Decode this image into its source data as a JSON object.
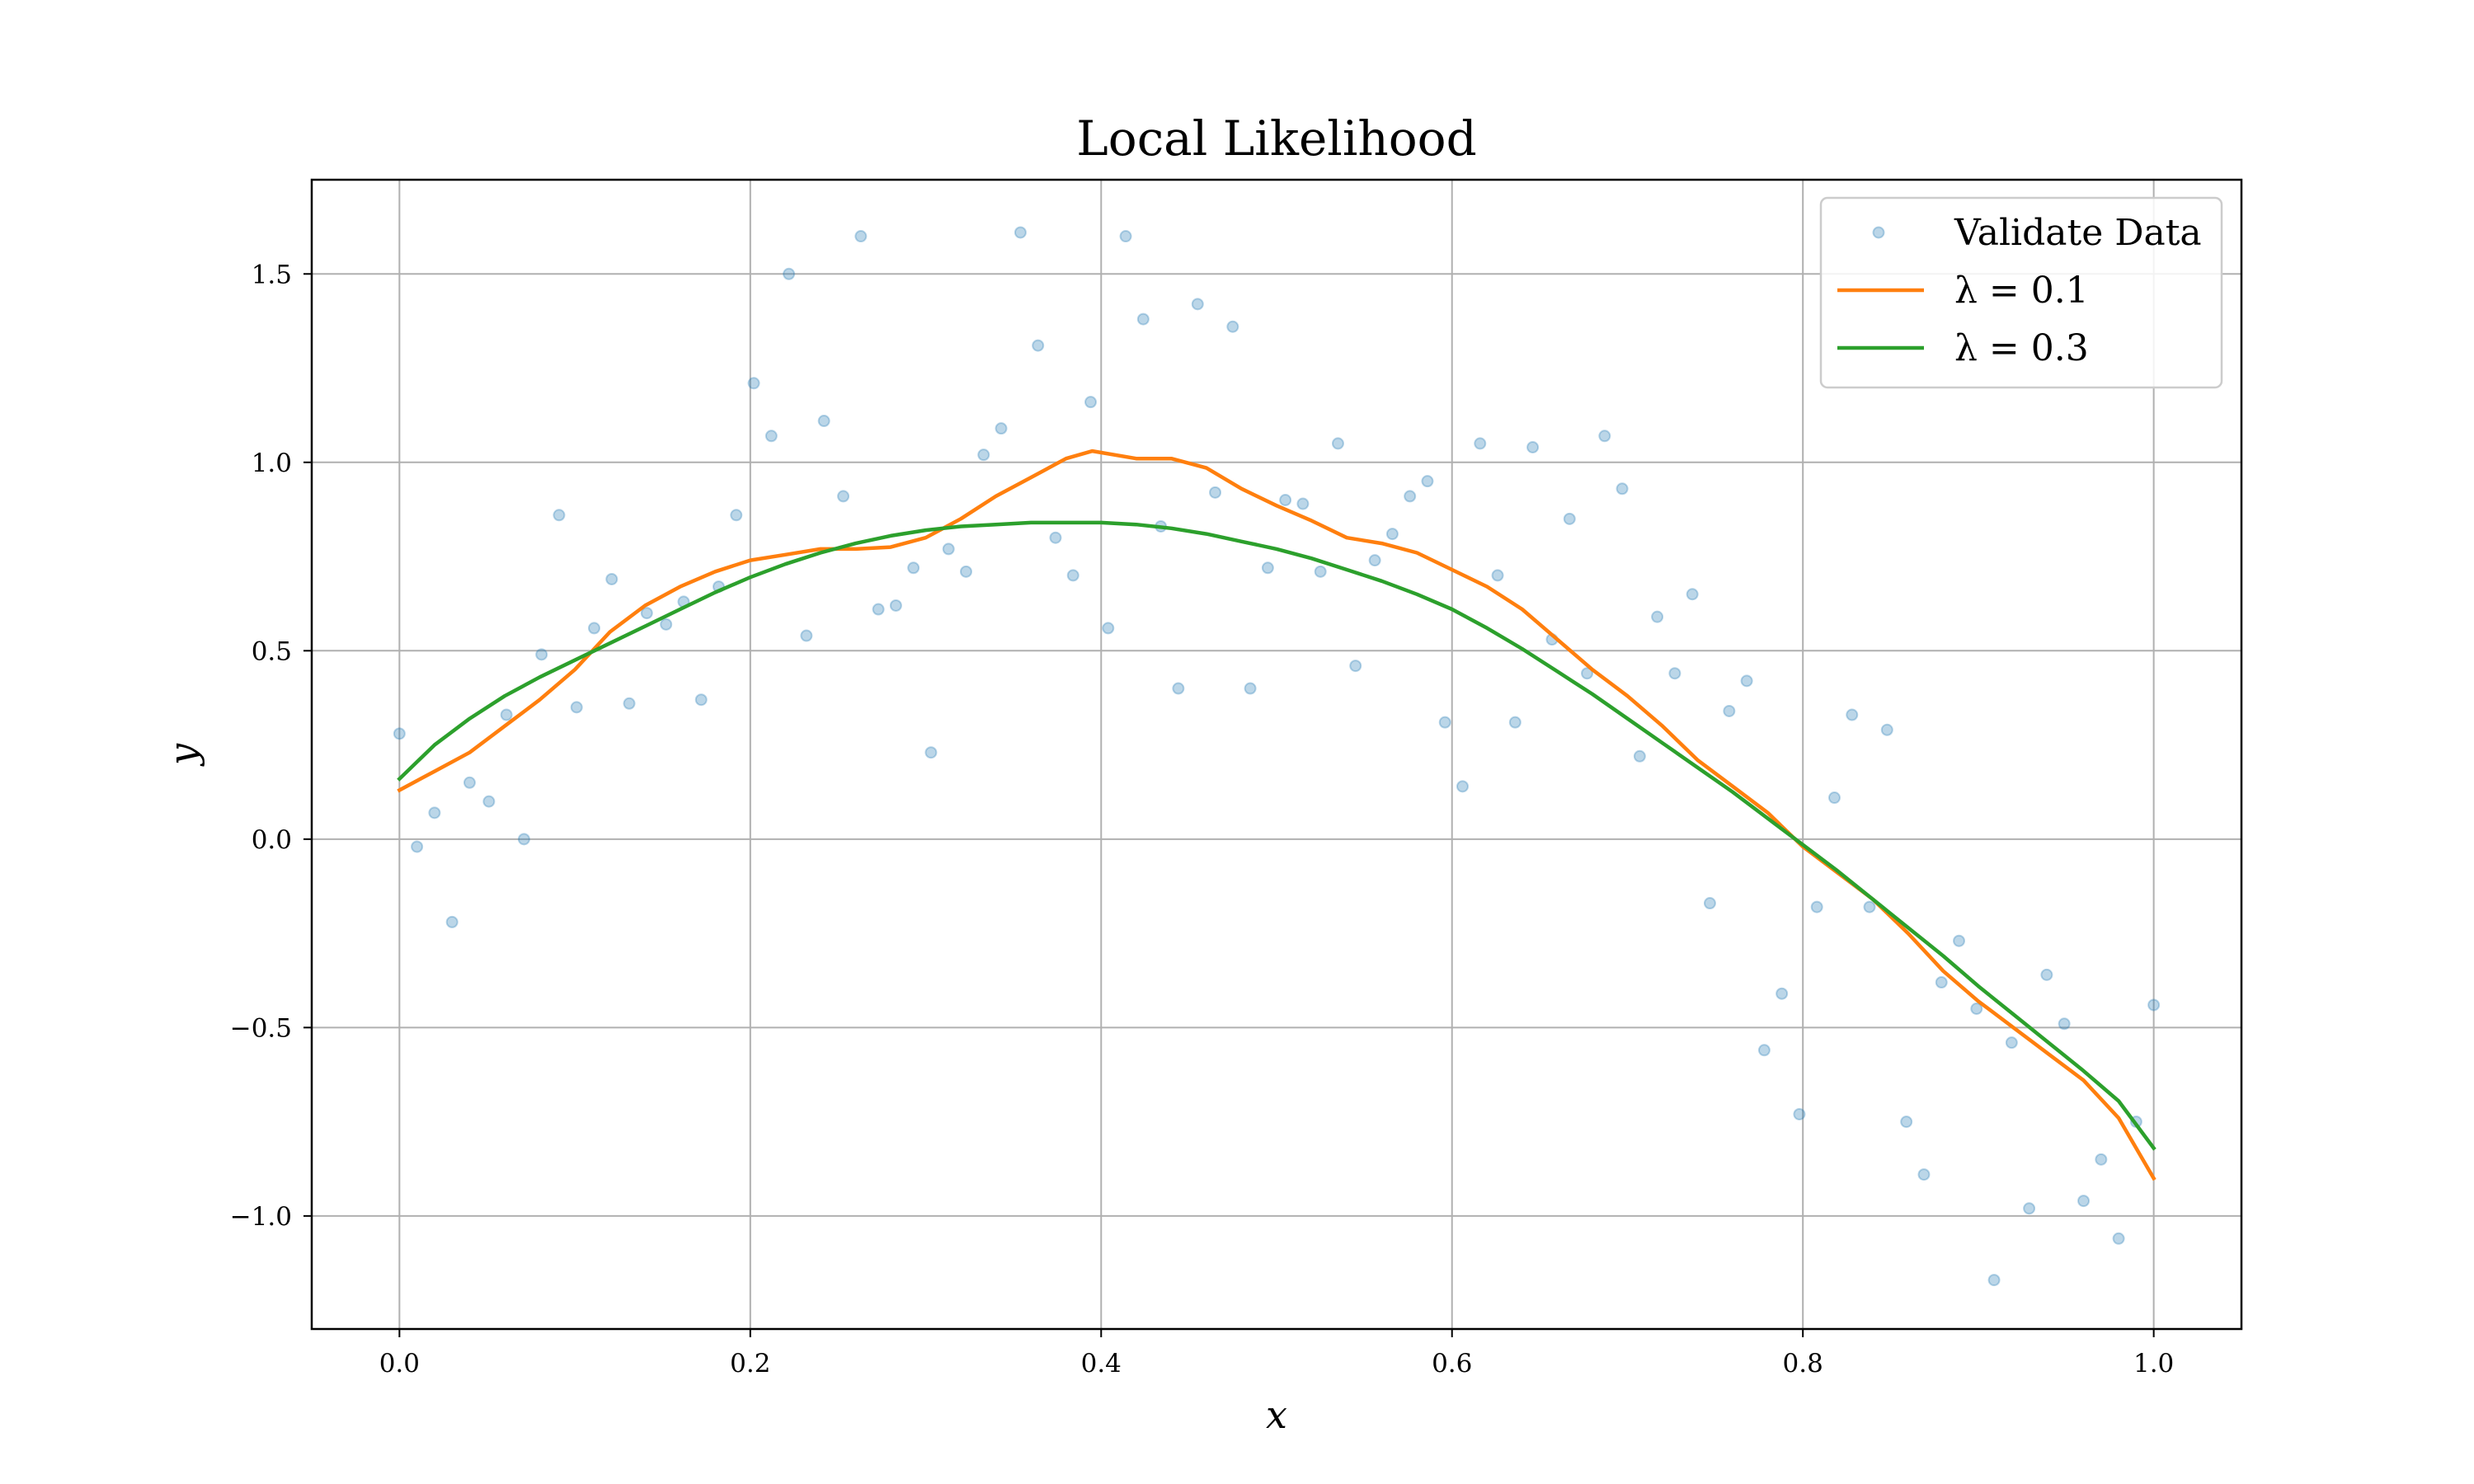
{
  "chart_data": {
    "type": "line",
    "title": "Local Likelihood",
    "xlabel": "x",
    "ylabel": "y",
    "xlim": [
      -0.05,
      1.05
    ],
    "ylim": [
      -1.3,
      1.75
    ],
    "xticks": [
      0.0,
      0.2,
      0.4,
      0.6,
      0.8,
      1.0
    ],
    "xtick_labels": [
      "0.0",
      "0.2",
      "0.4",
      "0.6",
      "0.8",
      "1.0"
    ],
    "yticks": [
      -1.0,
      -0.5,
      0.0,
      0.5,
      1.0,
      1.5
    ],
    "ytick_labels": [
      "−1.0",
      "−0.5",
      "0.0",
      "0.5",
      "1.0",
      "1.5"
    ],
    "grid": true,
    "legend_position": "top-right",
    "scatter": {
      "name": "Validate Data",
      "color": "#1f77b4",
      "points": [
        [
          0.0,
          0.28
        ],
        [
          0.01,
          -0.02
        ],
        [
          0.02,
          0.07
        ],
        [
          0.03,
          -0.22
        ],
        [
          0.04,
          0.15
        ],
        [
          0.051,
          0.1
        ],
        [
          0.061,
          0.33
        ],
        [
          0.071,
          0.0
        ],
        [
          0.081,
          0.49
        ],
        [
          0.091,
          0.86
        ],
        [
          0.101,
          0.35
        ],
        [
          0.111,
          0.56
        ],
        [
          0.121,
          0.69
        ],
        [
          0.131,
          0.36
        ],
        [
          0.141,
          0.6
        ],
        [
          0.152,
          0.57
        ],
        [
          0.162,
          0.63
        ],
        [
          0.172,
          0.37
        ],
        [
          0.182,
          0.67
        ],
        [
          0.192,
          0.86
        ],
        [
          0.202,
          1.21
        ],
        [
          0.212,
          1.07
        ],
        [
          0.222,
          1.5
        ],
        [
          0.232,
          0.54
        ],
        [
          0.242,
          1.11
        ],
        [
          0.253,
          0.91
        ],
        [
          0.263,
          1.6
        ],
        [
          0.273,
          0.61
        ],
        [
          0.283,
          0.62
        ],
        [
          0.293,
          0.72
        ],
        [
          0.303,
          0.23
        ],
        [
          0.313,
          0.77
        ],
        [
          0.323,
          0.71
        ],
        [
          0.333,
          1.02
        ],
        [
          0.343,
          1.09
        ],
        [
          0.354,
          1.61
        ],
        [
          0.364,
          1.31
        ],
        [
          0.374,
          0.8
        ],
        [
          0.384,
          0.7
        ],
        [
          0.394,
          1.16
        ],
        [
          0.404,
          0.56
        ],
        [
          0.414,
          1.6
        ],
        [
          0.424,
          1.38
        ],
        [
          0.434,
          0.83
        ],
        [
          0.444,
          0.4
        ],
        [
          0.455,
          1.42
        ],
        [
          0.465,
          0.92
        ],
        [
          0.475,
          1.36
        ],
        [
          0.485,
          0.4
        ],
        [
          0.495,
          0.72
        ],
        [
          0.505,
          0.9
        ],
        [
          0.515,
          0.89
        ],
        [
          0.525,
          0.71
        ],
        [
          0.535,
          1.05
        ],
        [
          0.545,
          0.46
        ],
        [
          0.556,
          0.74
        ],
        [
          0.566,
          0.81
        ],
        [
          0.576,
          0.91
        ],
        [
          0.586,
          0.95
        ],
        [
          0.596,
          0.31
        ],
        [
          0.606,
          0.14
        ],
        [
          0.616,
          1.05
        ],
        [
          0.626,
          0.7
        ],
        [
          0.636,
          0.31
        ],
        [
          0.646,
          1.04
        ],
        [
          0.657,
          0.53
        ],
        [
          0.667,
          0.85
        ],
        [
          0.677,
          0.44
        ],
        [
          0.687,
          1.07
        ],
        [
          0.697,
          0.93
        ],
        [
          0.707,
          0.22
        ],
        [
          0.717,
          0.59
        ],
        [
          0.727,
          0.44
        ],
        [
          0.737,
          0.65
        ],
        [
          0.747,
          -0.17
        ],
        [
          0.758,
          0.34
        ],
        [
          0.768,
          0.42
        ],
        [
          0.778,
          -0.56
        ],
        [
          0.788,
          -0.41
        ],
        [
          0.798,
          -0.73
        ],
        [
          0.808,
          -0.18
        ],
        [
          0.818,
          0.11
        ],
        [
          0.828,
          0.33
        ],
        [
          0.838,
          -0.18
        ],
        [
          0.848,
          0.29
        ],
        [
          0.859,
          -0.75
        ],
        [
          0.869,
          -0.89
        ],
        [
          0.879,
          -0.38
        ],
        [
          0.889,
          -0.27
        ],
        [
          0.899,
          -0.45
        ],
        [
          0.909,
          -1.17
        ],
        [
          0.919,
          -0.54
        ],
        [
          0.929,
          -0.98
        ],
        [
          0.939,
          -0.36
        ],
        [
          0.949,
          -0.49
        ],
        [
          0.96,
          -0.96
        ],
        [
          0.97,
          -0.85
        ],
        [
          0.98,
          -1.06
        ],
        [
          0.99,
          -0.75
        ],
        [
          1.0,
          -0.44
        ]
      ]
    },
    "series": [
      {
        "name": "λ = 0.1",
        "color": "#ff7f0e",
        "x": [
          0.0,
          0.02,
          0.04,
          0.06,
          0.08,
          0.1,
          0.12,
          0.14,
          0.16,
          0.18,
          0.2,
          0.22,
          0.24,
          0.26,
          0.28,
          0.3,
          0.32,
          0.34,
          0.36,
          0.38,
          0.395,
          0.42,
          0.44,
          0.46,
          0.48,
          0.5,
          0.52,
          0.54,
          0.56,
          0.58,
          0.6,
          0.62,
          0.64,
          0.66,
          0.68,
          0.7,
          0.72,
          0.74,
          0.76,
          0.78,
          0.8,
          0.82,
          0.84,
          0.86,
          0.88,
          0.9,
          0.92,
          0.94,
          0.96,
          0.98,
          1.0
        ],
        "y": [
          0.13,
          0.18,
          0.23,
          0.3,
          0.37,
          0.45,
          0.55,
          0.62,
          0.67,
          0.71,
          0.74,
          0.755,
          0.77,
          0.77,
          0.775,
          0.8,
          0.85,
          0.91,
          0.96,
          1.01,
          1.03,
          1.01,
          1.01,
          0.985,
          0.93,
          0.885,
          0.845,
          0.8,
          0.785,
          0.76,
          0.715,
          0.67,
          0.61,
          0.53,
          0.45,
          0.38,
          0.3,
          0.21,
          0.14,
          0.07,
          -0.02,
          -0.09,
          -0.16,
          -0.25,
          -0.35,
          -0.43,
          -0.5,
          -0.57,
          -0.64,
          -0.74,
          -0.9
        ]
      },
      {
        "name": "λ = 0.3",
        "color": "#2ca02c",
        "x": [
          0.0,
          0.02,
          0.04,
          0.06,
          0.08,
          0.1,
          0.12,
          0.14,
          0.16,
          0.18,
          0.2,
          0.22,
          0.24,
          0.26,
          0.28,
          0.3,
          0.32,
          0.34,
          0.36,
          0.38,
          0.4,
          0.42,
          0.44,
          0.46,
          0.48,
          0.5,
          0.52,
          0.54,
          0.56,
          0.58,
          0.6,
          0.62,
          0.64,
          0.66,
          0.68,
          0.7,
          0.72,
          0.74,
          0.76,
          0.78,
          0.8,
          0.82,
          0.84,
          0.86,
          0.88,
          0.9,
          0.92,
          0.94,
          0.96,
          0.98,
          1.0
        ],
        "y": [
          0.16,
          0.25,
          0.32,
          0.38,
          0.43,
          0.475,
          0.52,
          0.565,
          0.61,
          0.655,
          0.695,
          0.73,
          0.76,
          0.785,
          0.805,
          0.82,
          0.83,
          0.835,
          0.84,
          0.84,
          0.84,
          0.835,
          0.825,
          0.81,
          0.79,
          0.77,
          0.745,
          0.715,
          0.685,
          0.65,
          0.61,
          0.56,
          0.505,
          0.445,
          0.385,
          0.32,
          0.255,
          0.19,
          0.125,
          0.055,
          -0.015,
          -0.085,
          -0.16,
          -0.235,
          -0.31,
          -0.39,
          -0.465,
          -0.54,
          -0.615,
          -0.695,
          -0.82
        ]
      }
    ]
  }
}
